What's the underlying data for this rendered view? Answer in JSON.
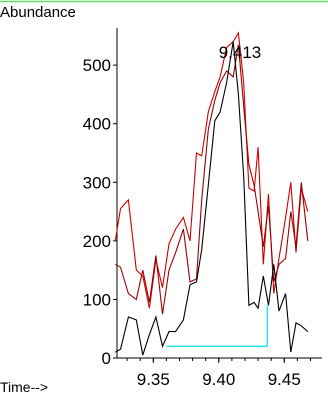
{
  "chart_data": {
    "type": "line",
    "ylabel": "Abundance",
    "xlabel": "Time-->",
    "peak_label": "9.413",
    "xlim": [
      9.32,
      9.475
    ],
    "ylim": [
      0,
      560
    ],
    "x_ticks": [
      {
        "value": 9.35,
        "label": "9.35"
      },
      {
        "value": 9.4,
        "label": "9.40"
      },
      {
        "value": 9.45,
        "label": "9.45"
      }
    ],
    "y_ticks": [
      {
        "value": 0,
        "label": "0"
      },
      {
        "value": 100,
        "label": "100"
      },
      {
        "value": 200,
        "label": "200"
      },
      {
        "value": 300,
        "label": "300"
      },
      {
        "value": 400,
        "label": "400"
      },
      {
        "value": 500,
        "label": "500"
      }
    ],
    "series": [
      {
        "color": "#cc0000",
        "points": [
          [
            9.321,
            200
          ],
          [
            9.325,
            255
          ],
          [
            9.331,
            270
          ],
          [
            9.337,
            150
          ],
          [
            9.342,
            140
          ],
          [
            9.347,
            85
          ],
          [
            9.352,
            168
          ],
          [
            9.357,
            120
          ],
          [
            9.362,
            195
          ],
          [
            9.367,
            220
          ],
          [
            9.373,
            240
          ],
          [
            9.378,
            200
          ],
          [
            9.383,
            350
          ],
          [
            9.387,
            345
          ],
          [
            9.392,
            420
          ],
          [
            9.397,
            455
          ],
          [
            9.401,
            480
          ],
          [
            9.406,
            530
          ],
          [
            9.411,
            540
          ],
          [
            9.415,
            555
          ],
          [
            9.419,
            470
          ],
          [
            9.423,
            290
          ],
          [
            9.427,
            285
          ],
          [
            9.43,
            360
          ],
          [
            9.434,
            160
          ],
          [
            9.438,
            280
          ],
          [
            9.442,
            110
          ],
          [
            9.446,
            170
          ],
          [
            9.451,
            240
          ],
          [
            9.455,
            300
          ],
          [
            9.459,
            180
          ],
          [
            9.463,
            290
          ],
          [
            9.468,
            250
          ]
        ]
      },
      {
        "color": "#990000",
        "points": [
          [
            9.321,
            160
          ],
          [
            9.325,
            155
          ],
          [
            9.331,
            110
          ],
          [
            9.337,
            100
          ],
          [
            9.342,
            150
          ],
          [
            9.347,
            95
          ],
          [
            9.352,
            175
          ],
          [
            9.357,
            75
          ],
          [
            9.362,
            150
          ],
          [
            9.367,
            180
          ],
          [
            9.373,
            220
          ],
          [
            9.378,
            130
          ],
          [
            9.383,
            135
          ],
          [
            9.387,
            270
          ],
          [
            9.392,
            390
          ],
          [
            9.397,
            440
          ],
          [
            9.401,
            470
          ],
          [
            9.406,
            490
          ],
          [
            9.411,
            480
          ],
          [
            9.415,
            535
          ],
          [
            9.419,
            430
          ],
          [
            9.423,
            330
          ],
          [
            9.427,
            295
          ],
          [
            9.43,
            250
          ],
          [
            9.434,
            190
          ],
          [
            9.438,
            260
          ],
          [
            9.442,
            130
          ],
          [
            9.446,
            160
          ],
          [
            9.451,
            170
          ],
          [
            9.455,
            250
          ],
          [
            9.459,
            190
          ],
          [
            9.463,
            300
          ],
          [
            9.468,
            200
          ]
        ]
      },
      {
        "color": "#000000",
        "points": [
          [
            9.321,
            10
          ],
          [
            9.325,
            15
          ],
          [
            9.331,
            70
          ],
          [
            9.337,
            65
          ],
          [
            9.342,
            5
          ],
          [
            9.347,
            40
          ],
          [
            9.352,
            70
          ],
          [
            9.357,
            20
          ],
          [
            9.362,
            45
          ],
          [
            9.367,
            45
          ],
          [
            9.373,
            65
          ],
          [
            9.378,
            125
          ],
          [
            9.383,
            130
          ],
          [
            9.387,
            185
          ],
          [
            9.392,
            295
          ],
          [
            9.397,
            405
          ],
          [
            9.401,
            420
          ],
          [
            9.406,
            470
          ],
          [
            9.411,
            540
          ],
          [
            9.415,
            450
          ],
          [
            9.419,
            310
          ],
          [
            9.423,
            90
          ],
          [
            9.427,
            95
          ],
          [
            9.43,
            85
          ],
          [
            9.434,
            140
          ],
          [
            9.438,
            90
          ],
          [
            9.442,
            160
          ],
          [
            9.446,
            80
          ],
          [
            9.451,
            110
          ],
          [
            9.455,
            10
          ],
          [
            9.459,
            60
          ],
          [
            9.463,
            55
          ],
          [
            9.468,
            45
          ]
        ]
      }
    ],
    "integration": {
      "color": "#00e5e5",
      "start": 9.36,
      "end": 9.437,
      "baseline": 20,
      "end_top": 90
    }
  }
}
